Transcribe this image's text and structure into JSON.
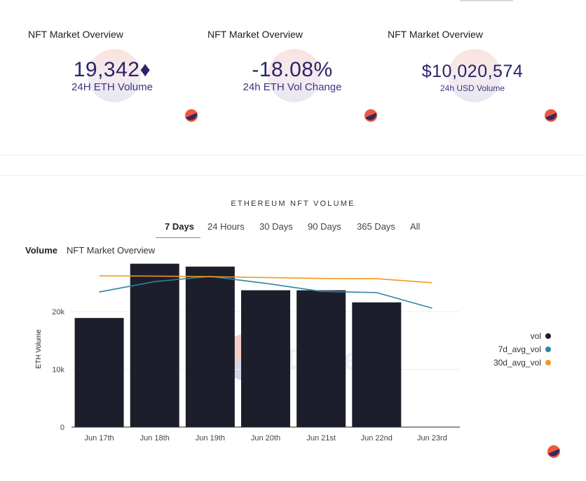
{
  "kpis": [
    {
      "title": "NFT Market Overview",
      "value": "19,342♦",
      "label": "24H ETH Volume"
    },
    {
      "title": "NFT Market Overview",
      "value": "-18.08%",
      "label": "24h ETH Vol Change"
    },
    {
      "title": "NFT Market Overview",
      "value": "$10,020,574",
      "label": "24h USD Volume"
    }
  ],
  "chart_section": {
    "title": "ETHEREUM NFT VOLUME",
    "time_tabs": [
      "7 Days",
      "24 Hours",
      "30 Days",
      "90 Days",
      "365 Days",
      "All"
    ],
    "active_time_tab": "7 Days",
    "viz_tabs": [
      "Volume",
      "NFT Market Overview"
    ],
    "active_viz_tab": "Volume"
  },
  "colors": {
    "brand_navy": "#2a256b",
    "dune_orange": "#f0573a",
    "dune_purple": "#2f2a63",
    "bar": "#1d1e2b",
    "line_7d": "#2c84a3",
    "line_30d": "#f39a1c"
  },
  "chart_data": {
    "type": "bar",
    "title": "ETHEREUM NFT VOLUME",
    "ylabel": "ETH Volume",
    "xlabel": "",
    "categories": [
      "Jun 17th",
      "Jun 18th",
      "Jun 19th",
      "Jun 20th",
      "Jun 21st",
      "Jun 22nd",
      "Jun 23rd"
    ],
    "ylim": [
      0,
      28500
    ],
    "yticks": [
      0,
      10000,
      20000
    ],
    "ytick_labels": [
      "0",
      "10k",
      "20k"
    ],
    "series": [
      {
        "name": "vol",
        "type": "bar",
        "color": "#1d1e2b",
        "values": [
          18900,
          28300,
          27800,
          23700,
          23700,
          21600,
          null
        ]
      },
      {
        "name": "7d_avg_vol",
        "type": "line",
        "color": "#2c84a3",
        "values": [
          23400,
          25200,
          26100,
          24900,
          23500,
          23300,
          20600
        ]
      },
      {
        "name": "30d_avg_vol",
        "type": "line",
        "color": "#f39a1c",
        "values": [
          26200,
          26150,
          26050,
          25900,
          25750,
          25700,
          25000
        ]
      }
    ],
    "legend": [
      "vol",
      "7d_avg_vol",
      "30d_avg_vol"
    ],
    "legend_position": "right",
    "watermark": "Dune"
  }
}
